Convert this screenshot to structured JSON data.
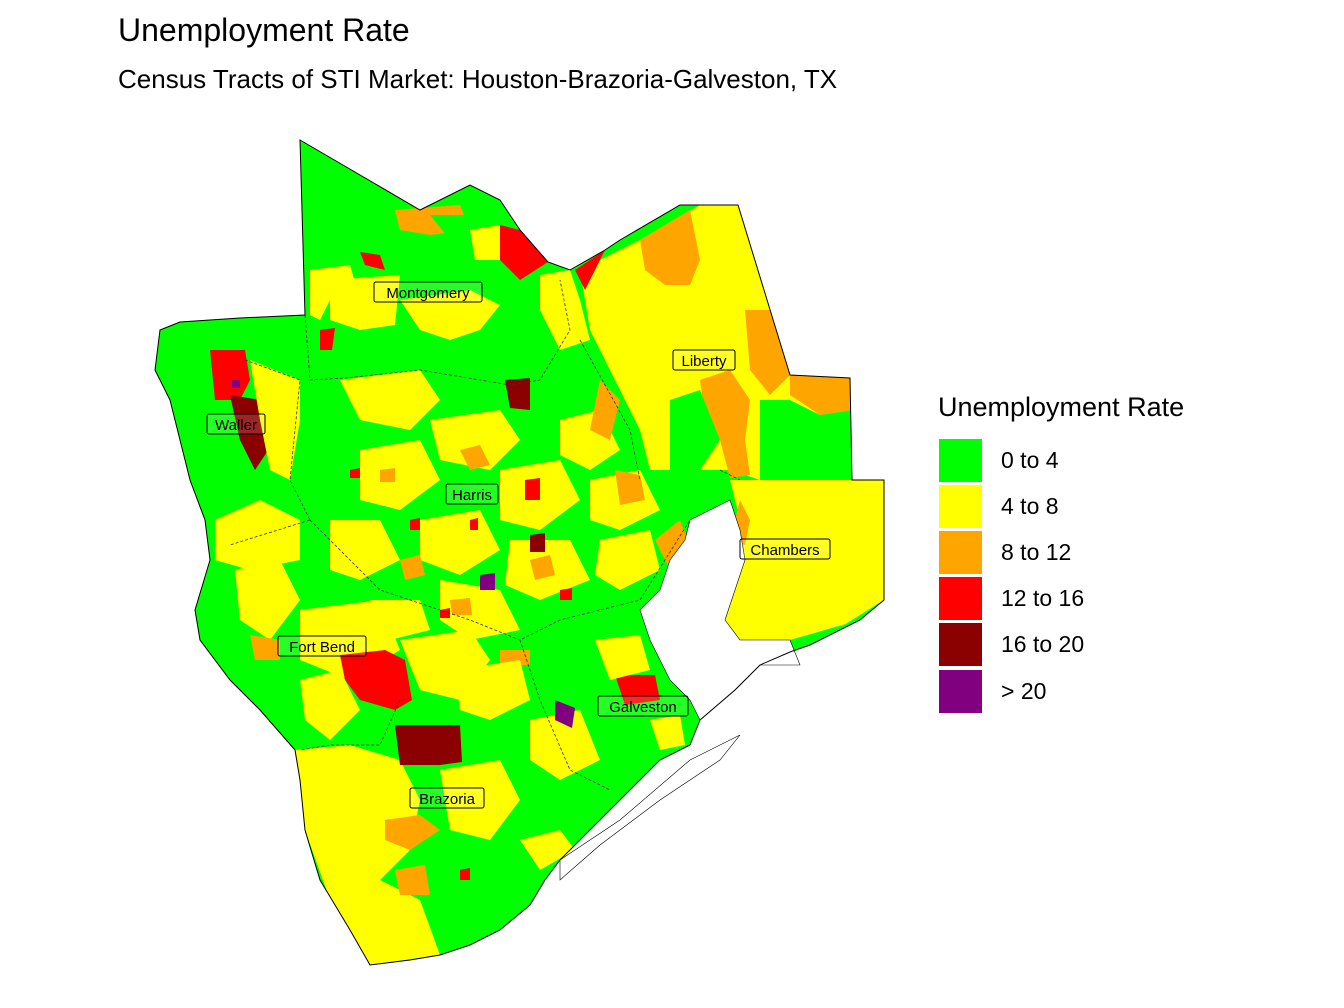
{
  "title": "Unemployment Rate",
  "subtitle": "Census Tracts of STI Market: Houston-Brazoria-Galveston, TX",
  "legend": {
    "title": "Unemployment Rate",
    "items": [
      {
        "label": "0 to 4",
        "color": "#00ff00"
      },
      {
        "label": "4 to 8",
        "color": "#ffff00"
      },
      {
        "label": "8 to 12",
        "color": "#ffa500"
      },
      {
        "label": "12 to 16",
        "color": "#ff0000"
      },
      {
        "label": "16 to 20",
        "color": "#8b0000"
      },
      {
        "label": "> 20",
        "color": "#800080"
      }
    ]
  },
  "counties": [
    {
      "name": "Montgomery"
    },
    {
      "name": "Liberty"
    },
    {
      "name": "Waller"
    },
    {
      "name": "Harris"
    },
    {
      "name": "Chambers"
    },
    {
      "name": "Fort Bend"
    },
    {
      "name": "Galveston"
    },
    {
      "name": "Brazoria"
    }
  ],
  "colors": {
    "water": "#ffffff",
    "boundary": "#000000"
  }
}
